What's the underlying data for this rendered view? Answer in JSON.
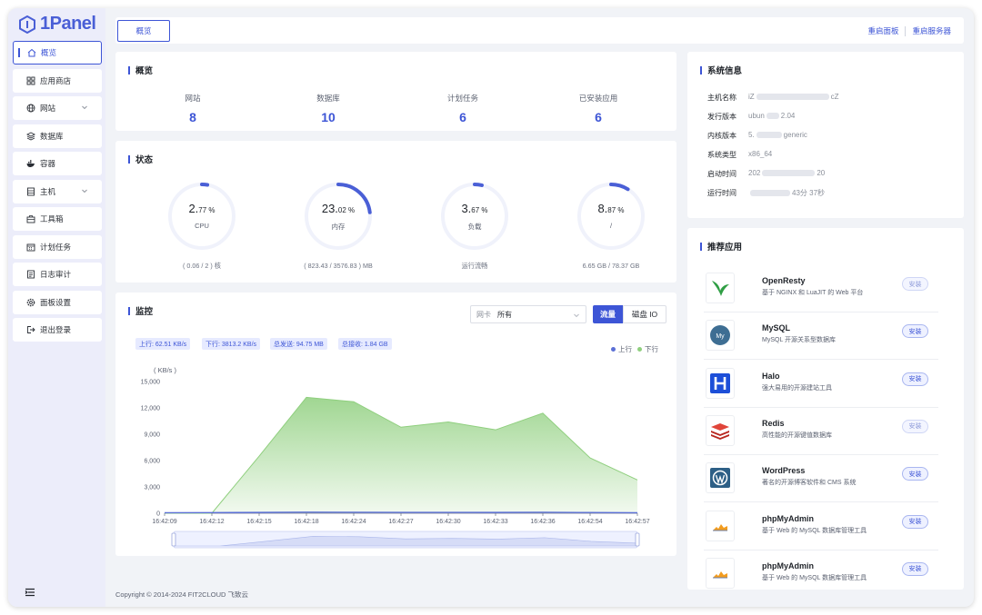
{
  "brand": {
    "name": "1Panel"
  },
  "sidebar": {
    "items": [
      {
        "label": "概览",
        "icon": "home-icon"
      },
      {
        "label": "应用商店",
        "icon": "grid-icon"
      },
      {
        "label": "网站",
        "icon": "globe-icon"
      },
      {
        "label": "数据库",
        "icon": "database-icon"
      },
      {
        "label": "容器",
        "icon": "docker-icon"
      },
      {
        "label": "主机",
        "icon": "server-icon"
      },
      {
        "label": "工具箱",
        "icon": "toolbox-icon"
      },
      {
        "label": "计划任务",
        "icon": "calendar-icon"
      },
      {
        "label": "日志审计",
        "icon": "log-icon"
      },
      {
        "label": "面板设置",
        "icon": "settings-icon"
      },
      {
        "label": "退出登录",
        "icon": "logout-icon"
      }
    ]
  },
  "topbar": {
    "tab": "概览",
    "restart_panel": "重启面板",
    "restart_server": "重启服务器"
  },
  "overview": {
    "title": "概览",
    "items": [
      {
        "label": "网站",
        "value": "8"
      },
      {
        "label": "数据库",
        "value": "10"
      },
      {
        "label": "计划任务",
        "value": "6"
      },
      {
        "label": "已安装应用",
        "value": "6"
      }
    ]
  },
  "status": {
    "title": "状态",
    "gauges": [
      {
        "int": "2.",
        "dec": "77 %",
        "label": "CPU",
        "foot": "( 0.06 / 2 ) 核",
        "percent": 2.77
      },
      {
        "int": "23.",
        "dec": "02 %",
        "label": "内存",
        "foot": "( 823.43 / 3576.83 ) MB",
        "percent": 23.02
      },
      {
        "int": "3.",
        "dec": "67 %",
        "label": "负载",
        "foot": "运行流畅",
        "percent": 3.67
      },
      {
        "int": "8.",
        "dec": "87 %",
        "label": "/",
        "foot": "6.65 GB / 78.37 GB",
        "percent": 8.87
      }
    ]
  },
  "monitor": {
    "title": "监控",
    "nic_label": "网卡",
    "nic_value": "所有",
    "seg_traffic": "流量",
    "seg_disk": "磁盘 IO",
    "tags": [
      "上行: 62.51 KB/s",
      "下行: 3813.2 KB/s",
      "总发送: 94.75 MB",
      "总接收: 1.84 GB"
    ],
    "legend_up": "上行",
    "legend_down": "下行"
  },
  "chart_data": {
    "type": "area",
    "ylabel": "( KB/s )",
    "ylim": [
      0,
      15000
    ],
    "yticks": [
      "15,000",
      "12,000",
      "9,000",
      "6,000",
      "3,000",
      "0"
    ],
    "yticks_values": [
      15000,
      12000,
      9000,
      6000,
      3000,
      0
    ],
    "x": [
      "16:42:09",
      "16:42:12",
      "16:42:15",
      "16:42:18",
      "16:42:24",
      "16:42:27",
      "16:42:30",
      "16:42:33",
      "16:42:36",
      "16:42:54",
      "16:42:57"
    ],
    "series": [
      {
        "name": "上行",
        "color": "#5b6fd6",
        "values": [
          60,
          70,
          90,
          120,
          110,
          95,
          100,
          90,
          105,
          80,
          62
        ]
      },
      {
        "name": "下行",
        "color": "#8fcf7e",
        "values": [
          0,
          0,
          6500,
          13200,
          12700,
          9800,
          10400,
          9500,
          11400,
          6300,
          3800
        ]
      }
    ],
    "legend": "top-right",
    "grid": false
  },
  "sysinfo": {
    "title": "系统信息",
    "rows": [
      {
        "k": "主机名称",
        "v1": "iZ",
        "v2": "cZ"
      },
      {
        "k": "发行版本",
        "v1": "ubun",
        "v2": "2.04"
      },
      {
        "k": "内核版本",
        "v1": "5.",
        "v2": "generic"
      },
      {
        "k": "系统类型",
        "v1": "x86_64",
        "v2": ""
      },
      {
        "k": "启动时间",
        "v1": "202",
        "v2": "20"
      },
      {
        "k": "运行时间",
        "v1": "",
        "v2": "43分 37秒"
      }
    ]
  },
  "apps": {
    "title": "推荐应用",
    "install_label": "安装",
    "items": [
      {
        "name": "OpenResty",
        "desc": "基于 NGINX 和 LuaJIT 的 Web 平台",
        "icon": "openresty-icon"
      },
      {
        "name": "MySQL",
        "desc": "MySQL 开源关系型数据库",
        "icon": "mysql-icon"
      },
      {
        "name": "Halo",
        "desc": "强大易用的开源建站工具",
        "icon": "halo-icon"
      },
      {
        "name": "Redis",
        "desc": "高性能的开源键值数据库",
        "icon": "redis-icon"
      },
      {
        "name": "WordPress",
        "desc": "著名的开源博客软件和 CMS 系统",
        "icon": "wordpress-icon"
      },
      {
        "name": "phpMyAdmin",
        "desc": "基于 Web 的 MySQL 数据库管理工具",
        "icon": "phpmyadmin-icon"
      },
      {
        "name": "phpMyAdmin",
        "desc": "基于 Web 的 MySQL 数据库管理工具",
        "icon": "phpmyadmin-icon"
      }
    ]
  },
  "footer": {
    "copyright": "Copyright © 2014-2024 FIT2CLOUD 飞致云"
  },
  "colors": {
    "accent": "#3d55d6",
    "sidebar_bg": "#ecedfa",
    "download": "#8fcf7e",
    "upload": "#5b6fd6"
  }
}
